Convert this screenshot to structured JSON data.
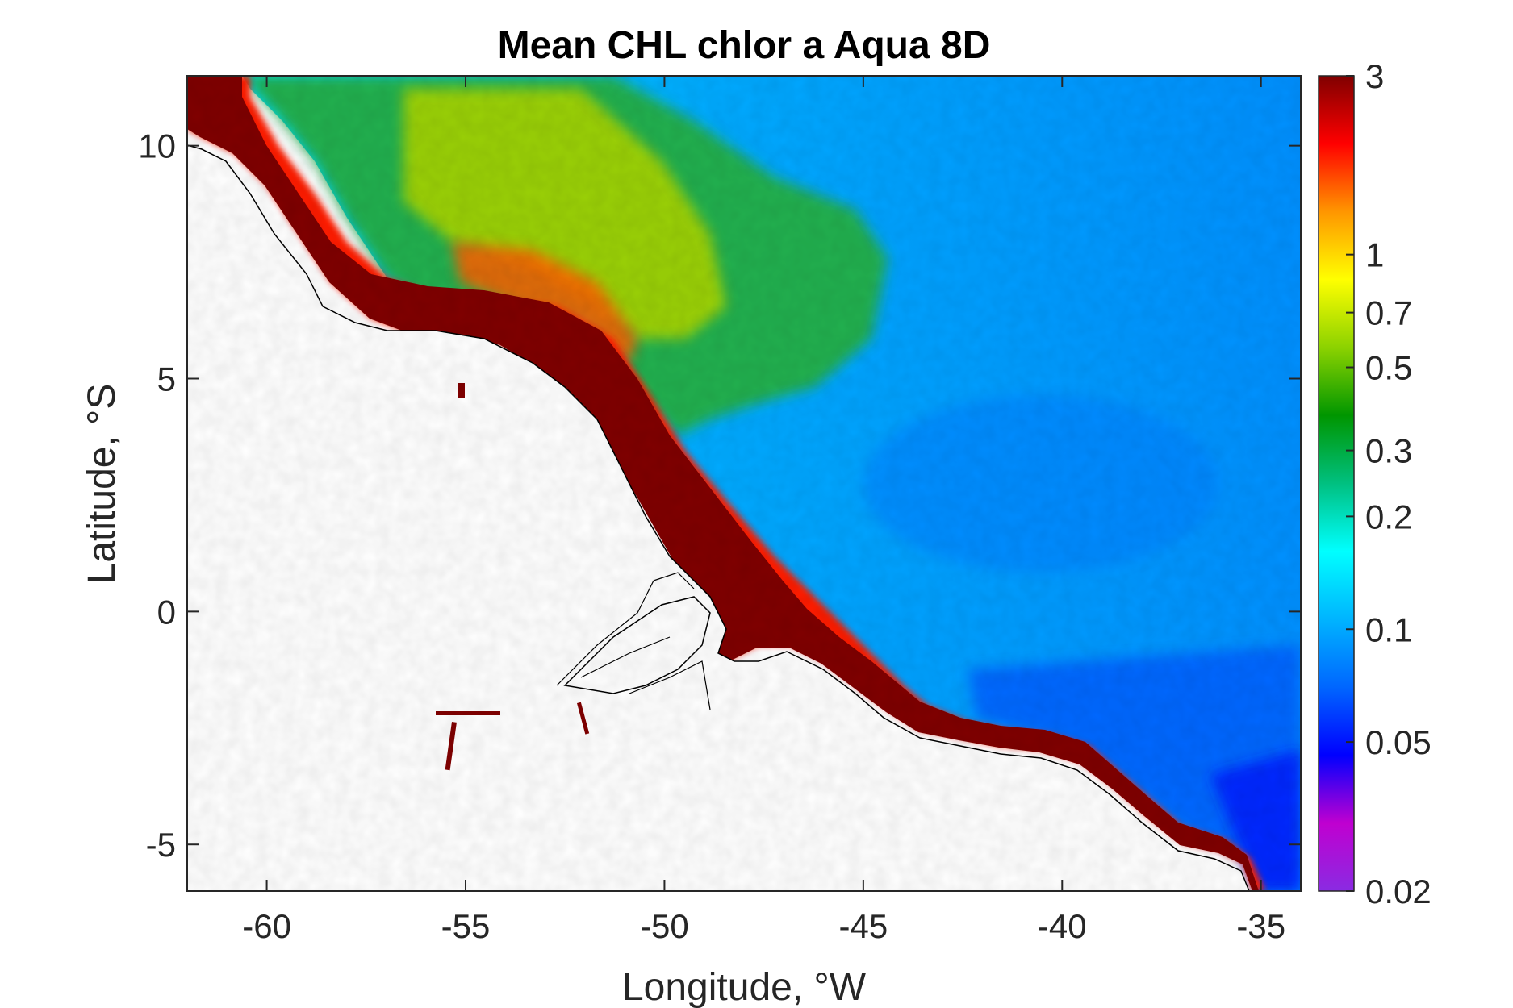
{
  "chart_data": {
    "type": "heatmap",
    "title": "Mean CHL chlor a Aqua 8D",
    "xlabel": "Longitude, °W",
    "ylabel": "Latitude, °S",
    "xlim": [
      -62,
      -34
    ],
    "ylim": [
      -6,
      11.5
    ],
    "x_ticks": [
      -60,
      -55,
      -50,
      -45,
      -40,
      -35
    ],
    "x_tick_labels": [
      "-60",
      "-55",
      "-50",
      "-45",
      "-40",
      "-35"
    ],
    "y_ticks": [
      -5,
      0,
      5,
      10
    ],
    "y_tick_labels": [
      "-5",
      "0",
      "5",
      "10"
    ],
    "colorbar": {
      "scale": "log",
      "range": [
        0.02,
        3
      ],
      "ticks": [
        0.02,
        0.05,
        0.1,
        0.2,
        0.3,
        0.5,
        0.7,
        1,
        3
      ],
      "tick_labels": [
        "0.02",
        "0.05",
        "0.1",
        "0.2",
        "0.3",
        "0.5",
        "0.7",
        "1",
        "3"
      ],
      "colors": [
        "#8a2be2",
        "#c000d0",
        "#0000ff",
        "#0066ff",
        "#00b4ff",
        "#00ffff",
        "#00c080",
        "#009600",
        "#8cd200",
        "#ffff00",
        "#ff9600",
        "#ff0000",
        "#800000"
      ]
    },
    "grid": false
  }
}
